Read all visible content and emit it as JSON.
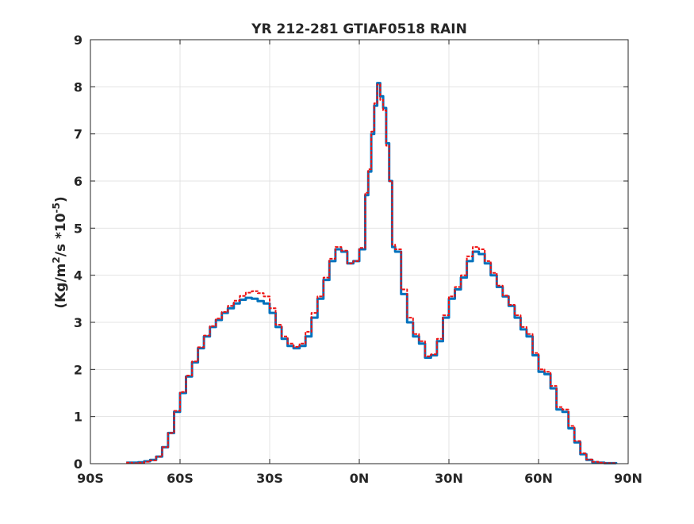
{
  "chart_data": {
    "type": "line",
    "title": "YR 212-281 GTIAF0518 RAIN",
    "xlabel": "",
    "ylabel_main": "(Kg/m",
    "ylabel_sup1": "2",
    "ylabel_mid": "/s   *10",
    "ylabel_sup2": "-5",
    "ylabel_end": ")",
    "xlim": [
      -90,
      90
    ],
    "ylim": [
      0,
      9
    ],
    "xticks": [
      -90,
      -60,
      -30,
      0,
      30,
      60,
      90
    ],
    "xtick_labels": [
      "90S",
      "60S",
      "30S",
      "0N",
      "30N",
      "60N",
      "90N"
    ],
    "yticks": [
      0,
      1,
      2,
      3,
      4,
      5,
      6,
      7,
      8,
      9
    ],
    "ytick_labels": [
      "0",
      "1",
      "2",
      "3",
      "4",
      "5",
      "6",
      "7",
      "8",
      "9"
    ],
    "grid": true,
    "series": [
      {
        "color": "#0072BD",
        "x": [
          -78,
          -76,
          -74,
          -72,
          -70,
          -68,
          -66,
          -64,
          -62,
          -60,
          -58,
          -56,
          -54,
          -52,
          -50,
          -48,
          -46,
          -44,
          -42,
          -40,
          -38,
          -36,
          -34,
          -32,
          -30,
          -28,
          -26,
          -24,
          -22,
          -20,
          -18,
          -16,
          -14,
          -12,
          -10,
          -8,
          -6,
          -4,
          -2,
          0,
          2,
          3,
          4,
          5,
          6,
          7,
          8,
          9,
          10,
          11,
          12,
          14,
          16,
          18,
          20,
          22,
          24,
          26,
          28,
          30,
          32,
          34,
          36,
          38,
          40,
          42,
          44,
          46,
          48,
          50,
          52,
          54,
          56,
          58,
          60,
          62,
          64,
          66,
          68,
          70,
          72,
          74,
          76,
          78,
          80,
          82,
          84,
          86
        ],
        "y": [
          0.02,
          0.02,
          0.03,
          0.05,
          0.08,
          0.15,
          0.35,
          0.65,
          1.1,
          1.5,
          1.85,
          2.15,
          2.45,
          2.7,
          2.9,
          3.05,
          3.2,
          3.3,
          3.4,
          3.48,
          3.52,
          3.5,
          3.45,
          3.4,
          3.2,
          2.9,
          2.65,
          2.5,
          2.45,
          2.5,
          2.7,
          3.1,
          3.5,
          3.9,
          4.3,
          4.55,
          4.5,
          4.25,
          4.3,
          4.55,
          5.7,
          6.2,
          7.0,
          7.6,
          8.08,
          7.8,
          7.55,
          6.8,
          6.0,
          4.6,
          4.5,
          3.6,
          3.0,
          2.7,
          2.55,
          2.25,
          2.3,
          2.6,
          3.1,
          3.5,
          3.7,
          3.95,
          4.3,
          4.5,
          4.45,
          4.25,
          4.0,
          3.75,
          3.55,
          3.35,
          3.1,
          2.85,
          2.7,
          2.3,
          1.95,
          1.9,
          1.6,
          1.15,
          1.1,
          0.75,
          0.45,
          0.2,
          0.08,
          0.03,
          0.02,
          0.01,
          0.01,
          0.0
        ]
      },
      {
        "color": "#EE1111",
        "x": [
          -78,
          -76,
          -74,
          -72,
          -70,
          -68,
          -66,
          -64,
          -62,
          -60,
          -58,
          -56,
          -54,
          -52,
          -50,
          -48,
          -46,
          -44,
          -42,
          -40,
          -38,
          -36,
          -34,
          -32,
          -30,
          -28,
          -26,
          -24,
          -22,
          -20,
          -18,
          -16,
          -14,
          -12,
          -10,
          -8,
          -6,
          -4,
          -2,
          0,
          2,
          3,
          4,
          5,
          6,
          7,
          8,
          9,
          10,
          11,
          12,
          14,
          16,
          18,
          20,
          22,
          24,
          26,
          28,
          30,
          32,
          34,
          36,
          38,
          40,
          42,
          44,
          46,
          48,
          50,
          52,
          54,
          56,
          58,
          60,
          62,
          64,
          66,
          68,
          70,
          72,
          74,
          76,
          78,
          80,
          82,
          84,
          86
        ],
        "y": [
          0.02,
          0.01,
          0.02,
          0.04,
          0.07,
          0.15,
          0.35,
          0.65,
          1.12,
          1.52,
          1.87,
          2.17,
          2.47,
          2.72,
          2.92,
          3.08,
          3.22,
          3.35,
          3.46,
          3.56,
          3.63,
          3.66,
          3.62,
          3.55,
          3.3,
          2.95,
          2.7,
          2.55,
          2.48,
          2.55,
          2.8,
          3.2,
          3.55,
          3.95,
          4.35,
          4.6,
          4.52,
          4.25,
          4.3,
          4.58,
          5.75,
          6.25,
          7.05,
          7.65,
          8.05,
          7.72,
          7.5,
          6.75,
          6.0,
          4.65,
          4.55,
          3.7,
          3.1,
          2.75,
          2.6,
          2.28,
          2.32,
          2.65,
          3.15,
          3.55,
          3.75,
          4.0,
          4.4,
          4.6,
          4.55,
          4.3,
          4.05,
          3.78,
          3.57,
          3.37,
          3.15,
          2.9,
          2.75,
          2.35,
          2.0,
          1.95,
          1.65,
          1.2,
          1.15,
          0.8,
          0.48,
          0.22,
          0.09,
          0.04,
          0.02,
          0.01,
          0.01,
          0.0
        ]
      }
    ]
  }
}
